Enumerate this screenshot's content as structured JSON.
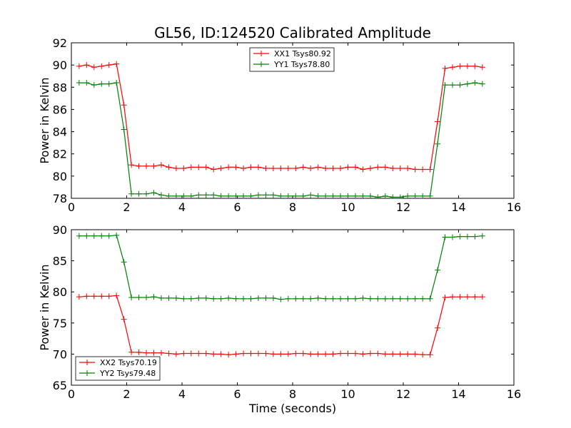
{
  "title": "GL56, ID:124520 Calibrated Amplitude",
  "chart_data": [
    {
      "type": "line",
      "ylabel": "Power in Kelvin",
      "xlim": [
        0,
        16
      ],
      "ylim": [
        78,
        92
      ],
      "xticks": [
        "0",
        "2",
        "4",
        "6",
        "8",
        "10",
        "12",
        "14",
        "16"
      ],
      "yticks": [
        "78",
        "80",
        "82",
        "84",
        "86",
        "88",
        "90",
        "92"
      ],
      "legend_position": "top-center",
      "x": [
        0.28,
        0.55,
        0.82,
        1.09,
        1.36,
        1.63,
        1.9,
        2.17,
        2.44,
        2.71,
        2.98,
        3.25,
        3.52,
        3.79,
        4.06,
        4.33,
        4.6,
        4.87,
        5.14,
        5.41,
        5.68,
        5.95,
        6.22,
        6.49,
        6.76,
        7.03,
        7.3,
        7.57,
        7.84,
        8.11,
        8.38,
        8.65,
        8.92,
        9.19,
        9.46,
        9.73,
        10.0,
        10.27,
        10.54,
        10.81,
        11.08,
        11.35,
        11.62,
        11.89,
        12.16,
        12.43,
        12.7,
        12.97,
        13.24,
        13.51,
        13.78,
        14.05,
        14.32,
        14.59,
        14.86
      ],
      "series": [
        {
          "name": "XX1 Tsys80.92",
          "color": "#ff0000",
          "values": [
            89.9,
            90.0,
            89.8,
            89.9,
            90.0,
            90.1,
            86.4,
            81.0,
            80.9,
            80.9,
            80.9,
            81.0,
            80.8,
            80.7,
            80.7,
            80.8,
            80.8,
            80.8,
            80.6,
            80.7,
            80.8,
            80.8,
            80.7,
            80.8,
            80.8,
            80.7,
            80.7,
            80.7,
            80.7,
            80.7,
            80.8,
            80.7,
            80.8,
            80.7,
            80.7,
            80.7,
            80.8,
            80.8,
            80.6,
            80.7,
            80.8,
            80.8,
            80.7,
            80.7,
            80.7,
            80.6,
            80.6,
            80.6,
            84.9,
            89.7,
            89.8,
            89.9,
            89.9,
            89.9,
            89.8
          ]
        },
        {
          "name": "YY1 Tsys78.80",
          "color": "#008000",
          "values": [
            88.4,
            88.4,
            88.2,
            88.3,
            88.3,
            88.4,
            84.2,
            78.4,
            78.4,
            78.4,
            78.5,
            78.3,
            78.2,
            78.2,
            78.2,
            78.2,
            78.3,
            78.3,
            78.3,
            78.2,
            78.2,
            78.2,
            78.2,
            78.2,
            78.3,
            78.3,
            78.3,
            78.2,
            78.2,
            78.2,
            78.2,
            78.3,
            78.2,
            78.2,
            78.2,
            78.2,
            78.2,
            78.2,
            78.2,
            78.2,
            78.1,
            78.2,
            78.1,
            78.1,
            78.2,
            78.2,
            78.2,
            78.2,
            82.9,
            88.2,
            88.2,
            88.2,
            88.3,
            88.4,
            88.3
          ]
        }
      ]
    },
    {
      "type": "line",
      "xlabel": "Time (seconds)",
      "ylabel": "Power in Kelvin",
      "xlim": [
        0,
        16
      ],
      "ylim": [
        65,
        90
      ],
      "xticks": [
        "0",
        "2",
        "4",
        "6",
        "8",
        "10",
        "12",
        "14",
        "16"
      ],
      "yticks": [
        "65",
        "70",
        "75",
        "80",
        "85",
        "90"
      ],
      "legend_position": "lower-left",
      "x": [
        0.28,
        0.55,
        0.82,
        1.09,
        1.36,
        1.63,
        1.9,
        2.17,
        2.44,
        2.71,
        2.98,
        3.25,
        3.52,
        3.79,
        4.06,
        4.33,
        4.6,
        4.87,
        5.14,
        5.41,
        5.68,
        5.95,
        6.22,
        6.49,
        6.76,
        7.03,
        7.3,
        7.57,
        7.84,
        8.11,
        8.38,
        8.65,
        8.92,
        9.19,
        9.46,
        9.73,
        10.0,
        10.27,
        10.54,
        10.81,
        11.08,
        11.35,
        11.62,
        11.89,
        12.16,
        12.43,
        12.7,
        12.97,
        13.24,
        13.51,
        13.78,
        14.05,
        14.32,
        14.59,
        14.86
      ],
      "series": [
        {
          "name": "XX2 Tsys70.19",
          "color": "#ff0000",
          "values": [
            79.2,
            79.3,
            79.3,
            79.3,
            79.3,
            79.4,
            75.6,
            70.3,
            70.3,
            70.2,
            70.2,
            70.2,
            70.1,
            70.0,
            70.1,
            70.1,
            70.1,
            70.1,
            70.0,
            70.0,
            69.9,
            70.0,
            70.1,
            70.1,
            70.1,
            70.1,
            70.0,
            70.0,
            70.0,
            70.1,
            70.1,
            70.0,
            70.0,
            70.0,
            70.0,
            70.1,
            70.1,
            70.1,
            70.0,
            70.1,
            70.1,
            70.0,
            70.0,
            70.0,
            70.0,
            70.0,
            69.9,
            69.9,
            74.2,
            79.1,
            79.2,
            79.2,
            79.2,
            79.2,
            79.2
          ]
        },
        {
          "name": "YY2 Tsys79.48",
          "color": "#008000",
          "values": [
            89.0,
            89.0,
            89.0,
            89.0,
            89.0,
            89.1,
            84.8,
            79.1,
            79.1,
            79.1,
            79.2,
            79.0,
            79.0,
            79.0,
            78.9,
            78.9,
            79.0,
            79.0,
            78.9,
            78.9,
            79.0,
            78.9,
            78.9,
            78.9,
            79.0,
            79.0,
            79.0,
            78.8,
            78.9,
            78.9,
            78.9,
            78.9,
            79.0,
            78.9,
            78.9,
            78.9,
            78.9,
            78.9,
            79.0,
            78.9,
            78.9,
            78.9,
            78.9,
            78.9,
            78.9,
            78.9,
            78.9,
            78.9,
            83.5,
            88.8,
            88.8,
            88.9,
            88.9,
            88.9,
            89.0
          ]
        }
      ]
    }
  ]
}
